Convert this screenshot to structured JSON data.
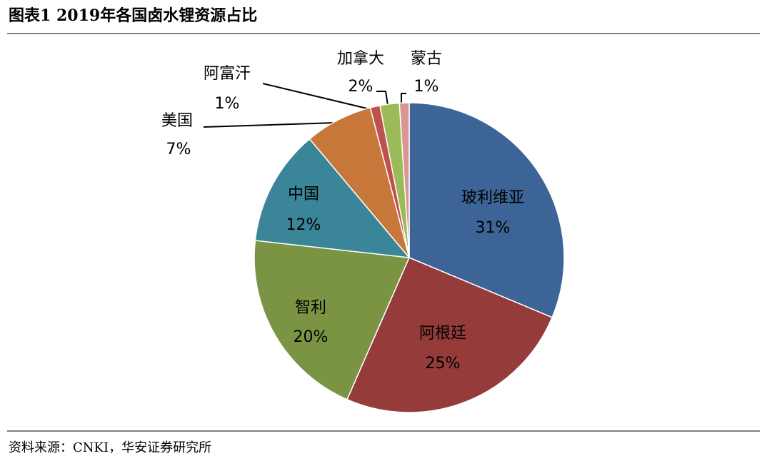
{
  "chart_data": {
    "type": "pie",
    "title": "图表1 2019年各国卤水锂资源占比",
    "source": "资料来源：CNKI，华安证券研究所",
    "categories": [
      "玻利维亚",
      "阿根廷",
      "智利",
      "中国",
      "美国",
      "阿富汗",
      "加拿大",
      "蒙古"
    ],
    "values": [
      31,
      25,
      20,
      12,
      7,
      1,
      2,
      1
    ],
    "value_labels": [
      "31%",
      "25%",
      "20%",
      "12%",
      "7%",
      "1%",
      "2%",
      "1%"
    ],
    "colors": [
      "#3d6496",
      "#953b3a",
      "#7a9444",
      "#3a8597",
      "#c8773a",
      "#c0504d",
      "#9bbb59",
      "#d99694"
    ]
  }
}
